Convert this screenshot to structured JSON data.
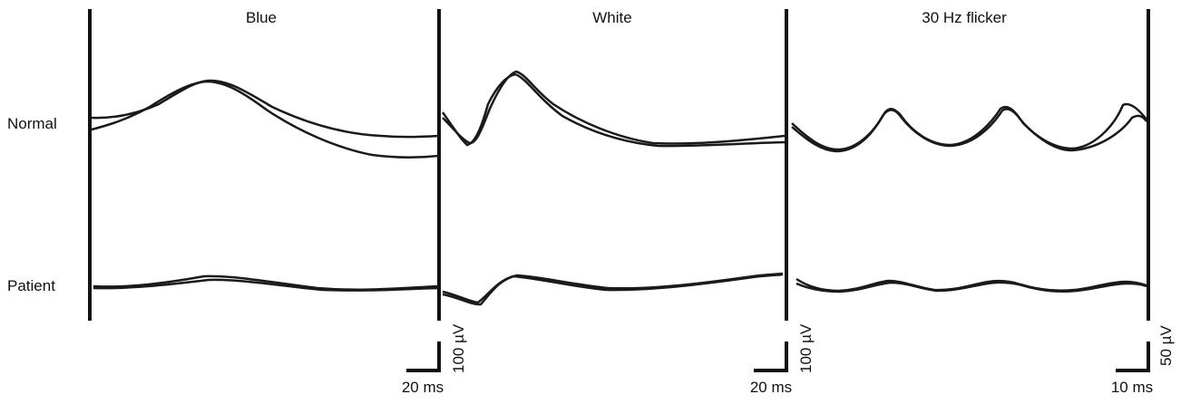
{
  "rows": {
    "normal": "Normal",
    "patient": "Patient"
  },
  "panels": [
    {
      "title": "Blue",
      "amp_scale": "100 µV",
      "time_scale": "20 ms"
    },
    {
      "title": "White",
      "amp_scale": "100 µV",
      "time_scale": "20 ms"
    },
    {
      "title": "30 Hz flicker",
      "amp_scale": "50 µV",
      "time_scale": "10 ms"
    }
  ],
  "colors": {
    "trace": "#1a1a1a",
    "axis": "#111111",
    "background": "#ffffff"
  }
}
